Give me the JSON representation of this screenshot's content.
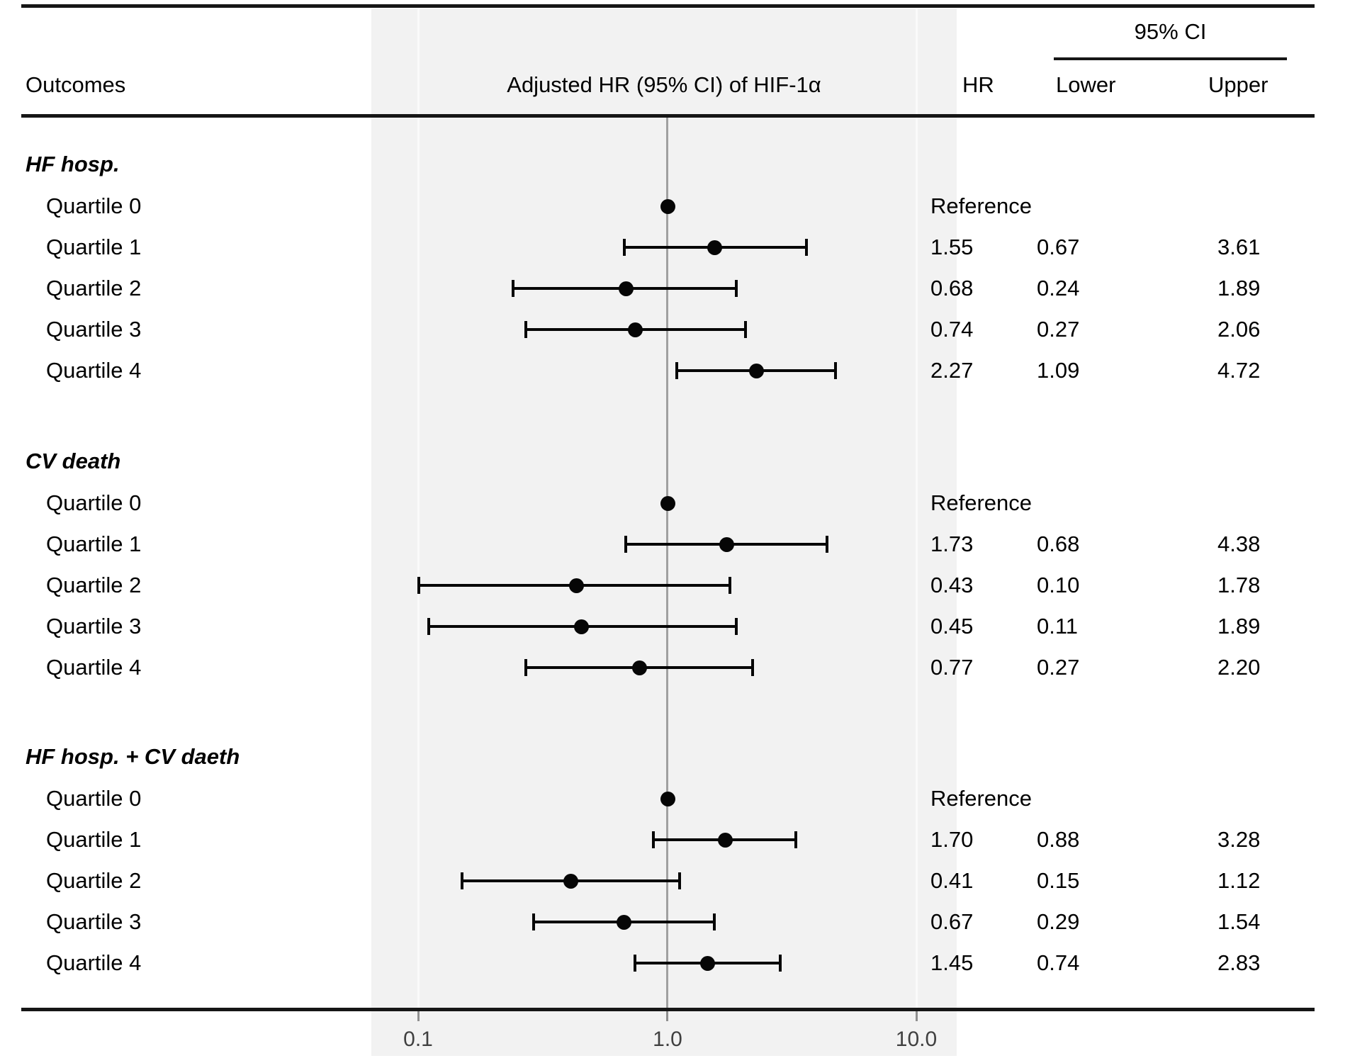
{
  "header": {
    "outcomes": "Outcomes",
    "plot_title": "Adjusted HR (95% CI) of HIF-1α",
    "hr": "HR",
    "ci": "95% CI",
    "lower": "Lower",
    "upper": "Upper"
  },
  "axis_ticks": [
    "0.1",
    "1.0",
    "10.0"
  ],
  "chart_data": {
    "type": "forest",
    "x_scale": "log",
    "x_ticks": [
      0.1,
      1.0,
      10.0
    ],
    "x_tick_labels": [
      "0.1",
      "1.0",
      "10.0"
    ],
    "x_range_approx": [
      0.065,
      16.5
    ],
    "plot_title": "Adjusted HR (95% CI) of HIF-1α",
    "reference_label": "Reference",
    "value_columns": [
      "HR",
      "Lower",
      "Upper"
    ],
    "ci_header": "95% CI",
    "grid": "vertical reference line at HR = 1.0",
    "legend_position": "none",
    "groups": [
      {
        "label": "HF hosp.",
        "rows": [
          {
            "label": "Quartile 0",
            "reference": true
          },
          {
            "label": "Quartile 1",
            "hr": "1.55",
            "lower": "0.67",
            "upper": "3.61"
          },
          {
            "label": "Quartile 2",
            "hr": "0.68",
            "lower": "0.24",
            "upper": "1.89"
          },
          {
            "label": "Quartile 3",
            "hr": "0.74",
            "lower": "0.27",
            "upper": "2.06"
          },
          {
            "label": "Quartile 4",
            "hr": "2.27",
            "lower": "1.09",
            "upper": "4.72"
          }
        ]
      },
      {
        "label": "CV death",
        "rows": [
          {
            "label": "Quartile 0",
            "reference": true
          },
          {
            "label": "Quartile 1",
            "hr": "1.73",
            "lower": "0.68",
            "upper": "4.38"
          },
          {
            "label": "Quartile 2",
            "hr": "0.43",
            "lower": "0.10",
            "upper": "1.78"
          },
          {
            "label": "Quartile 3",
            "hr": "0.45",
            "lower": "0.11",
            "upper": "1.89"
          },
          {
            "label": "Quartile 4",
            "hr": "0.77",
            "lower": "0.27",
            "upper": "2.20"
          }
        ]
      },
      {
        "label": "HF hosp. + CV daeth",
        "rows": [
          {
            "label": "Quartile 0",
            "reference": true
          },
          {
            "label": "Quartile 1",
            "hr": "1.70",
            "lower": "0.88",
            "upper": "3.28"
          },
          {
            "label": "Quartile 2",
            "hr": "0.41",
            "lower": "0.15",
            "upper": "1.12"
          },
          {
            "label": "Quartile 3",
            "hr": "0.67",
            "lower": "0.29",
            "upper": "1.54"
          },
          {
            "label": "Quartile 4",
            "hr": "1.45",
            "lower": "0.74",
            "upper": "2.83"
          }
        ]
      }
    ],
    "colors": {
      "marker": "#060606",
      "band_background": "#f2f2f2",
      "center_line": "#a0a0a0",
      "rules": "#161616"
    }
  }
}
